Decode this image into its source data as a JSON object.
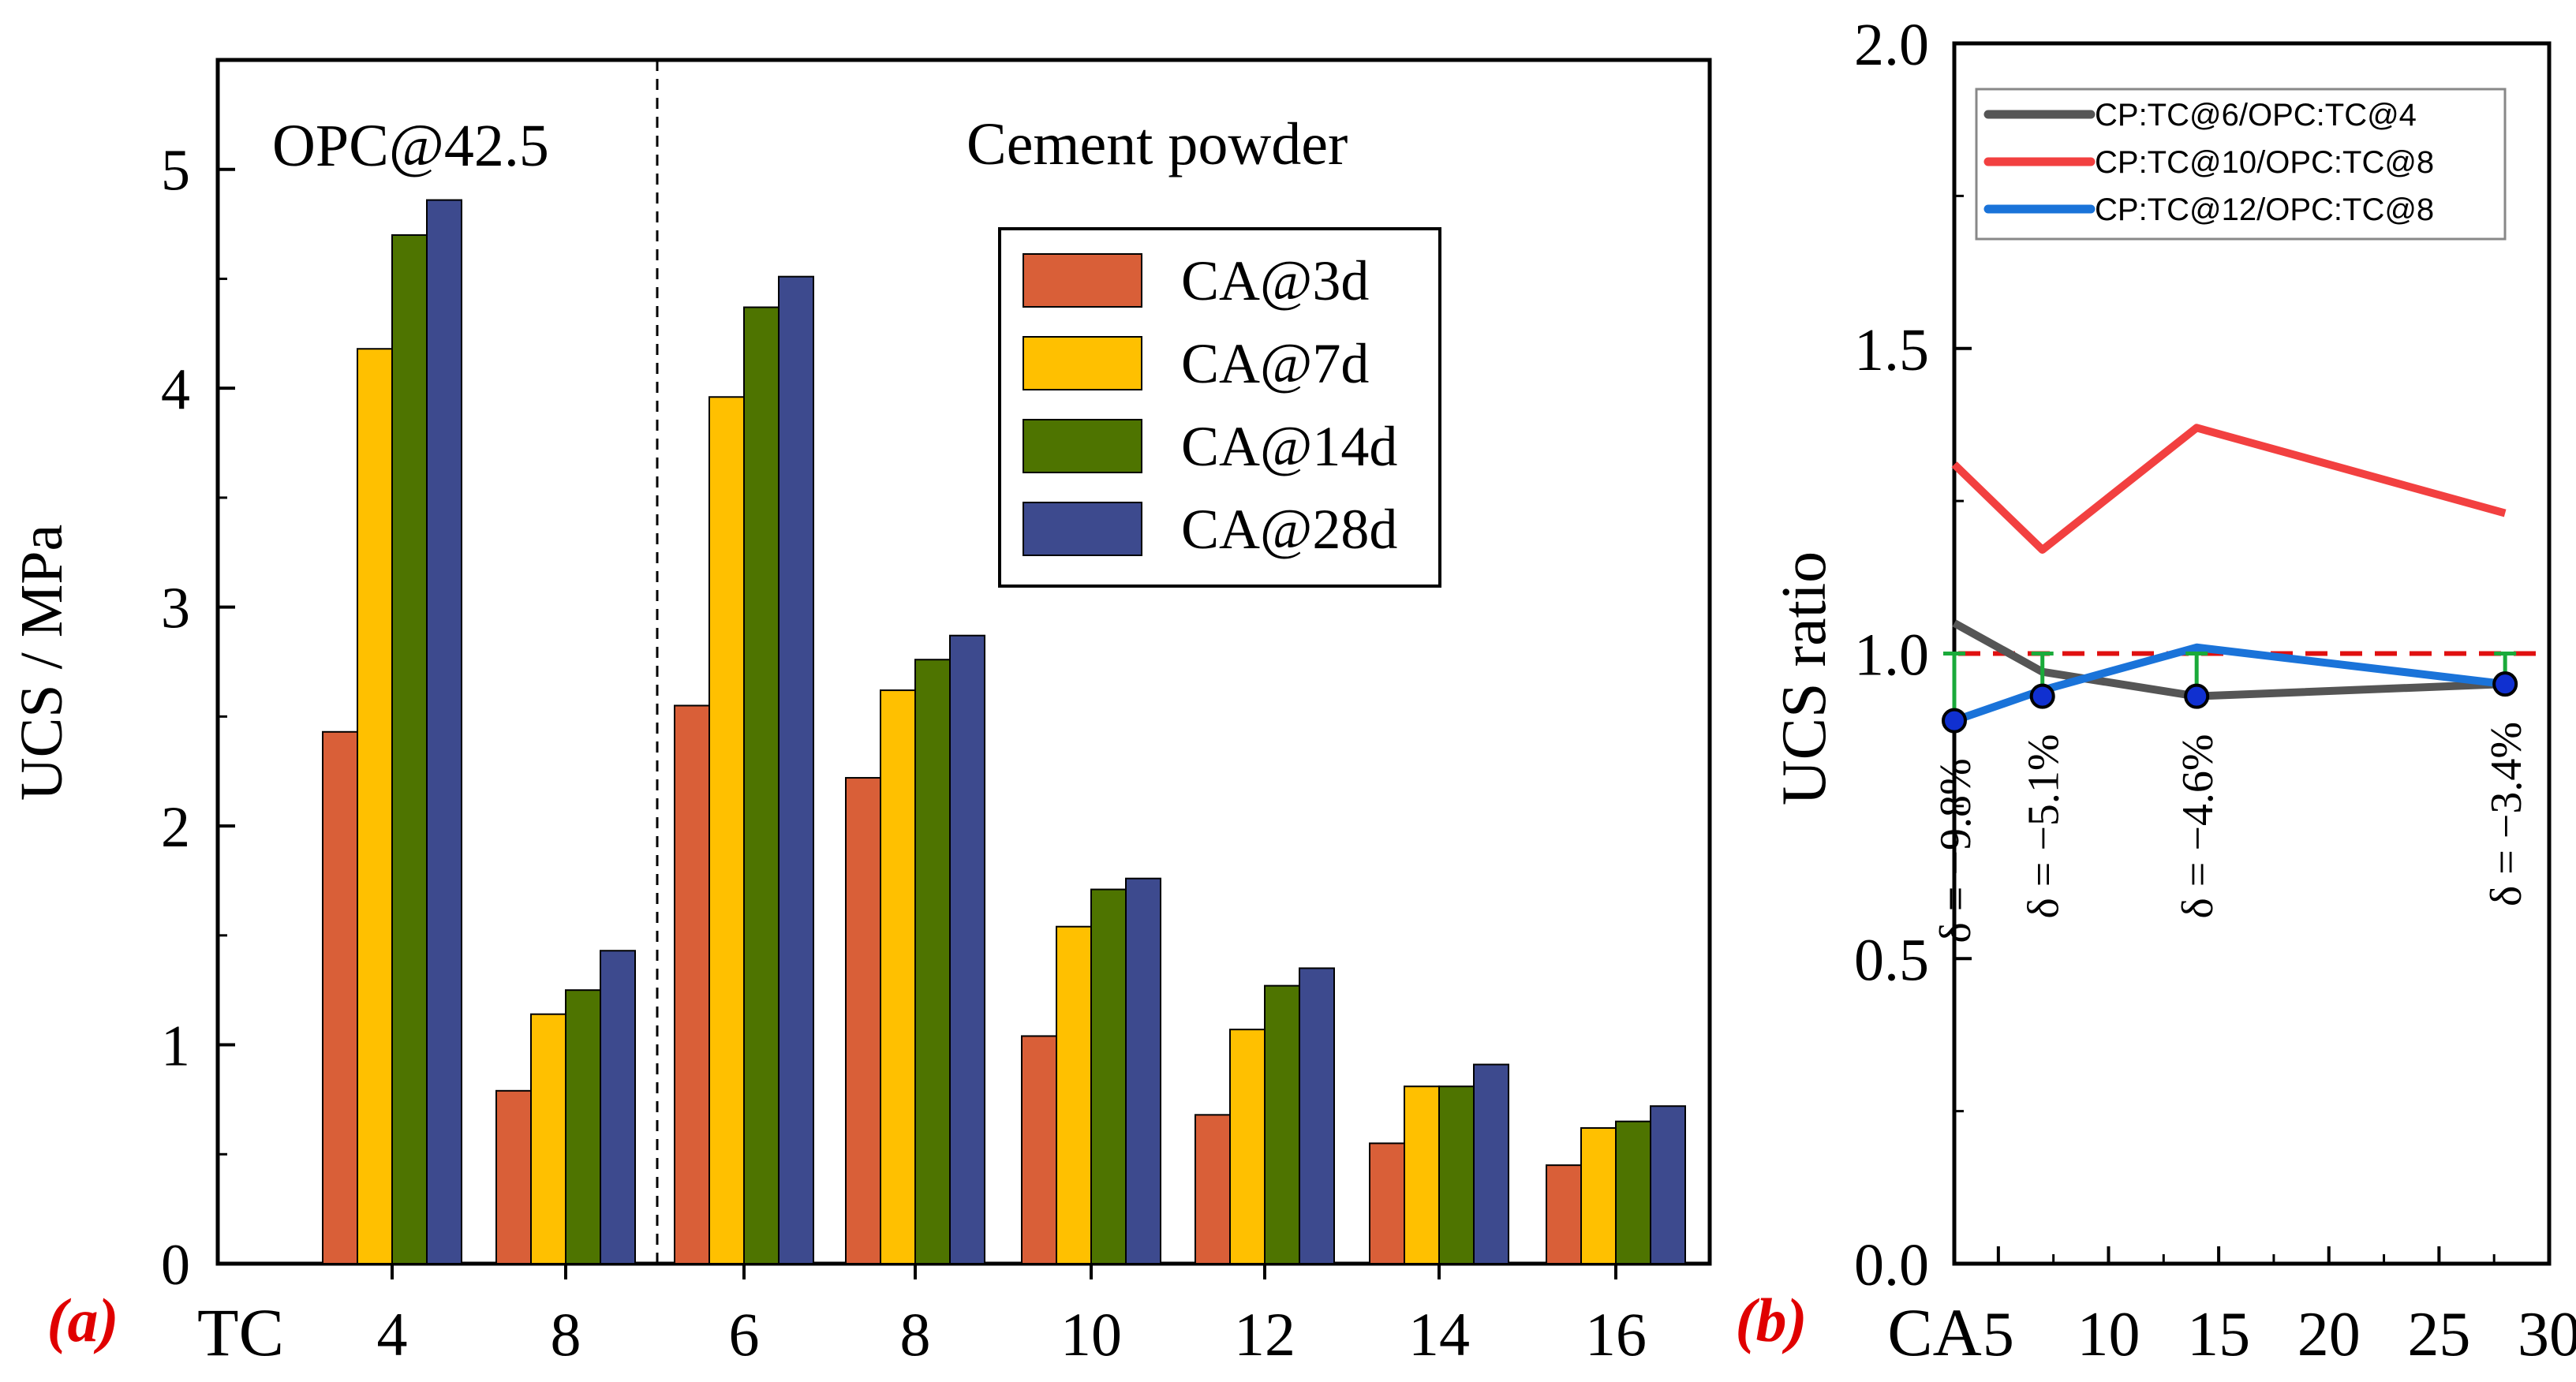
{
  "chart_data": [
    {
      "type": "bar",
      "panel_label": "(a)",
      "ylabel": "UCS / MPa",
      "xlabel": "TC",
      "ylim": [
        0,
        5.5
      ],
      "yticks": [
        "0",
        "1",
        "2",
        "3",
        "4",
        "5"
      ],
      "groups": [
        {
          "label": "OPC@42.5",
          "categories": [
            "4",
            "8"
          ]
        },
        {
          "label": "Cement powder",
          "categories": [
            "6",
            "8",
            "10",
            "12",
            "14",
            "16"
          ]
        }
      ],
      "categories": [
        "4",
        "8",
        "6",
        "8",
        "10",
        "12",
        "14",
        "16"
      ],
      "series": [
        {
          "name": "CA@3d",
          "color": "#d95f38",
          "values": [
            2.43,
            0.79,
            2.55,
            2.22,
            1.04,
            0.68,
            0.55,
            0.45
          ]
        },
        {
          "name": "CA@7d",
          "color": "#ffc000",
          "values": [
            4.18,
            1.14,
            3.96,
            2.62,
            1.54,
            1.07,
            0.81,
            0.62
          ]
        },
        {
          "name": "CA@14d",
          "color": "#4e7400",
          "values": [
            4.7,
            1.25,
            4.37,
            2.76,
            1.71,
            1.27,
            0.81,
            0.65
          ]
        },
        {
          "name": "CA@28d",
          "color": "#3d4a8e",
          "values": [
            4.86,
            1.43,
            4.51,
            2.87,
            1.76,
            1.35,
            0.91,
            0.72
          ]
        }
      ]
    },
    {
      "type": "line",
      "panel_label": "(b)",
      "ylabel": "UCS ratio",
      "xlabel": "CA",
      "xlim": [
        3,
        30
      ],
      "ylim": [
        0,
        2.0
      ],
      "xticks": [
        "5",
        "10",
        "15",
        "20",
        "25",
        "30"
      ],
      "yticks": [
        "0.0",
        "0.5",
        "1.0",
        "1.5",
        "2.0"
      ],
      "x": [
        3,
        7,
        14,
        28
      ],
      "series": [
        {
          "name": "CP:TC@6/OPC:TC@4",
          "color": "#555555",
          "values": [
            1.05,
            0.97,
            0.93,
            0.95
          ]
        },
        {
          "name": "CP:TC@10/OPC:TC@8",
          "color": "#f24040",
          "values": [
            1.31,
            1.17,
            1.37,
            1.23
          ]
        },
        {
          "name": "CP:TC@12/OPC:TC@8",
          "color": "#1a73d9",
          "values": [
            0.89,
            0.94,
            1.01,
            0.95
          ]
        }
      ],
      "reference_line": {
        "y": 1.0,
        "color": "#e01010"
      },
      "points": [
        {
          "x": 3,
          "y": 0.89,
          "delta": "δ = −9.8%"
        },
        {
          "x": 7,
          "y": 0.93,
          "delta": "δ = −5.1%"
        },
        {
          "x": 14,
          "y": 0.93,
          "delta": "δ = −4.6%"
        },
        {
          "x": 28,
          "y": 0.95,
          "delta": "δ = −3.4%"
        }
      ]
    }
  ]
}
